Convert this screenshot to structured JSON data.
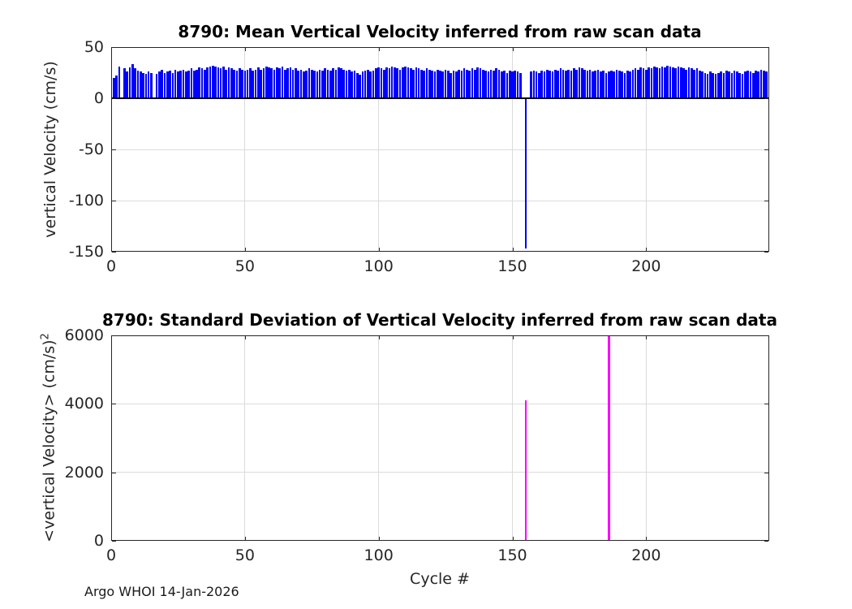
{
  "figure": {
    "annotation": "Argo WHOI 14-Jan-2026",
    "xlabel": "Cycle #"
  },
  "chart_data": [
    {
      "type": "bar",
      "title": "8790: Mean Vertical Velocity inferred from raw scan data",
      "ylabel": "vertical Velocity (cm/s)",
      "bar_color": "#0000FF",
      "grid": true,
      "ylim": [
        -150,
        50
      ],
      "xlim": [
        0,
        246
      ],
      "yticks": [
        50,
        0,
        -50,
        -100,
        -150
      ],
      "xticks": [
        0,
        50,
        100,
        150,
        200
      ],
      "x_start_cycle": 1,
      "values": [
        20,
        22,
        31,
        0,
        29,
        26,
        30,
        33,
        29,
        27,
        26,
        25,
        24,
        26,
        25,
        0,
        24,
        26,
        28,
        25,
        26,
        27,
        25,
        28,
        26,
        27,
        28,
        26,
        27,
        29,
        27,
        28,
        30,
        29,
        28,
        30,
        31,
        32,
        31,
        30,
        29,
        31,
        28,
        30,
        29,
        28,
        27,
        29,
        28,
        27,
        28,
        29,
        27,
        28,
        30,
        28,
        29,
        31,
        30,
        29,
        28,
        30,
        29,
        31,
        28,
        29,
        30,
        28,
        29,
        27,
        28,
        26,
        27,
        29,
        28,
        27,
        26,
        28,
        27,
        29,
        28,
        27,
        29,
        28,
        30,
        29,
        28,
        27,
        28,
        26,
        27,
        25,
        23,
        26,
        27,
        28,
        26,
        27,
        29,
        30,
        29,
        28,
        30,
        29,
        31,
        30,
        29,
        28,
        30,
        31,
        30,
        29,
        28,
        30,
        29,
        28,
        27,
        29,
        28,
        27,
        26,
        28,
        27,
        26,
        28,
        27,
        25,
        27,
        26,
        28,
        27,
        29,
        28,
        27,
        29,
        28,
        30,
        29,
        28,
        27,
        26,
        28,
        27,
        29,
        28,
        26,
        27,
        25,
        27,
        26,
        27,
        26,
        25,
        0,
        -147,
        0,
        26,
        27,
        26,
        25,
        27,
        26,
        28,
        27,
        26,
        28,
        27,
        29,
        28,
        27,
        28,
        27,
        29,
        28,
        30,
        29,
        28,
        27,
        28,
        26,
        27,
        28,
        26,
        27,
        25,
        26,
        27,
        26,
        28,
        27,
        26,
        25,
        27,
        26,
        28,
        29,
        28,
        30,
        29,
        28,
        30,
        29,
        31,
        30,
        29,
        31,
        30,
        32,
        31,
        30,
        29,
        31,
        30,
        29,
        28,
        30,
        29,
        28,
        29,
        27,
        26,
        25,
        24,
        26,
        25,
        24,
        25,
        26,
        25,
        27,
        26,
        25,
        27,
        26,
        25,
        24,
        26,
        27,
        26,
        25,
        27,
        26,
        28,
        27,
        26
      ]
    },
    {
      "type": "bar",
      "title": "8790: Standard Deviation of Vertical Velocity inferred from raw scan data",
      "ylabel": "<vertical Velocity> (cm/s)²",
      "ylabel_base": "<vertical Velocity> (cm/s)",
      "ylabel_sup": "2",
      "xlabel": "Cycle #",
      "bar_color": "#FF00FF",
      "grid": true,
      "ylim": [
        0,
        6000
      ],
      "xlim": [
        0,
        246
      ],
      "yticks": [
        6000,
        4000,
        2000,
        0
      ],
      "xticks": [
        0,
        50,
        100,
        150,
        200
      ],
      "x_start_cycle": 1,
      "n_cycles": 245,
      "baseline_value": 0,
      "spikes": [
        {
          "cycle": 155,
          "value": 4100
        },
        {
          "cycle": 186,
          "value": 6000
        }
      ]
    }
  ]
}
